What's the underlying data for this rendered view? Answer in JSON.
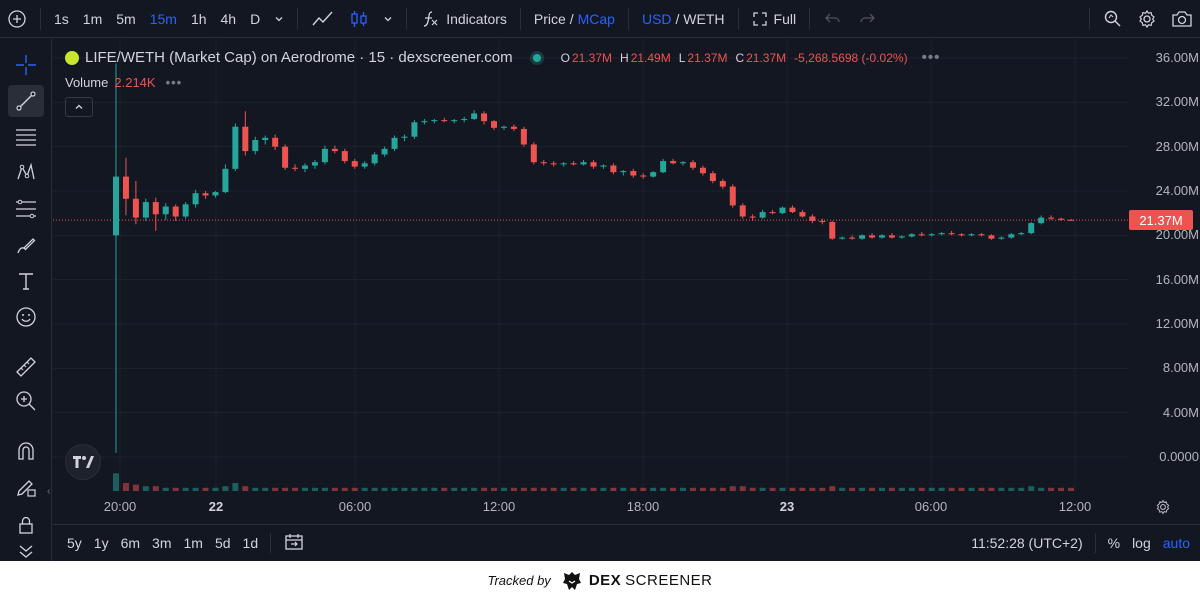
{
  "toolbar": {
    "intervals": [
      "1s",
      "1m",
      "5m",
      "15m",
      "1h",
      "4h",
      "D"
    ],
    "active_interval": "15m",
    "indicators_label": "Indicators",
    "price_label": "Price /",
    "mcap_label": "MCap",
    "usd_label": "USD",
    "weth_label": "/ WETH",
    "full_label": "Full"
  },
  "legend": {
    "title": "LIFE/WETH (Market Cap) on Aerodrome · 15 · dexscreener.com",
    "open_key": "O",
    "open": "21.37M",
    "high_key": "H",
    "high": "21.49M",
    "low_key": "L",
    "low": "21.37M",
    "close_key": "C",
    "close": "21.37M",
    "change": "-5,268.5698 (-0.02%)",
    "more": "•••",
    "volume_label": "Volume",
    "volume_value": "2.214K"
  },
  "price_axis": {
    "labels": [
      "36.00M",
      "32.00M",
      "28.00M",
      "24.00M",
      "20.00M",
      "16.00M",
      "12.00M",
      "8.00M",
      "4.00M",
      "0.0000"
    ],
    "last_price": "21.37M"
  },
  "time_axis": [
    {
      "label": "20:00",
      "bold": false
    },
    {
      "label": "22",
      "bold": true
    },
    {
      "label": "06:00",
      "bold": false
    },
    {
      "label": "12:00",
      "bold": false
    },
    {
      "label": "18:00",
      "bold": false
    },
    {
      "label": "23",
      "bold": true
    },
    {
      "label": "06:00",
      "bold": false
    },
    {
      "label": "12:00",
      "bold": false
    }
  ],
  "bottombar": {
    "ranges": [
      "5y",
      "1y",
      "6m",
      "3m",
      "1m",
      "5d",
      "1d"
    ],
    "clock": "11:52:28 (UTC+2)",
    "percent": "%",
    "log": "log",
    "auto": "auto"
  },
  "footer": {
    "tracked_by": "Tracked by",
    "brand_a": "DEX",
    "brand_b": "SCREENER"
  },
  "colors": {
    "up": "#26a69a",
    "down": "#ef5350",
    "accent": "#2962ff",
    "background": "#131722",
    "grid": "#1e222d"
  },
  "chart_data": {
    "type": "candlestick",
    "unit": "USD market cap (M)",
    "ylim": [
      -2,
      38
    ],
    "candles": [
      [
        20.0,
        35.5,
        0.4,
        25.3
      ],
      [
        25.3,
        27.0,
        21.8,
        23.3
      ],
      [
        23.3,
        24.9,
        21.0,
        21.6
      ],
      [
        21.6,
        23.3,
        21.3,
        23.0
      ],
      [
        23.0,
        23.4,
        20.4,
        21.9
      ],
      [
        21.9,
        22.9,
        21.4,
        22.6
      ],
      [
        22.6,
        22.8,
        21.3,
        21.7
      ],
      [
        21.7,
        23.0,
        21.5,
        22.8
      ],
      [
        22.8,
        24.1,
        22.5,
        23.8
      ],
      [
        23.8,
        24.0,
        23.3,
        23.6
      ],
      [
        23.6,
        24.0,
        23.4,
        23.9
      ],
      [
        23.9,
        26.4,
        23.8,
        26.0
      ],
      [
        26.0,
        30.1,
        25.8,
        29.8
      ],
      [
        29.8,
        31.2,
        27.2,
        27.6
      ],
      [
        27.6,
        28.9,
        27.3,
        28.6
      ],
      [
        28.6,
        29.0,
        28.2,
        28.8
      ],
      [
        28.8,
        29.1,
        27.7,
        28.0
      ],
      [
        28.0,
        28.2,
        25.9,
        26.1
      ],
      [
        26.1,
        26.4,
        25.8,
        26.0
      ],
      [
        26.0,
        26.5,
        25.7,
        26.3
      ],
      [
        26.3,
        26.8,
        26.0,
        26.6
      ],
      [
        26.6,
        28.1,
        26.4,
        27.8
      ],
      [
        27.8,
        28.1,
        27.4,
        27.6
      ],
      [
        27.6,
        27.8,
        26.5,
        26.7
      ],
      [
        26.7,
        26.9,
        26.0,
        26.2
      ],
      [
        26.2,
        26.7,
        26.0,
        26.5
      ],
      [
        26.5,
        27.5,
        26.3,
        27.3
      ],
      [
        27.3,
        28.0,
        27.1,
        27.8
      ],
      [
        27.8,
        29.0,
        27.6,
        28.8
      ],
      [
        28.8,
        29.1,
        28.5,
        28.9
      ],
      [
        28.9,
        30.4,
        28.7,
        30.2
      ],
      [
        30.2,
        30.5,
        30.0,
        30.3
      ],
      [
        30.3,
        30.5,
        30.1,
        30.4
      ],
      [
        30.4,
        30.6,
        30.2,
        30.3
      ],
      [
        30.3,
        30.5,
        30.1,
        30.4
      ],
      [
        30.4,
        30.7,
        30.2,
        30.5
      ],
      [
        30.5,
        31.3,
        30.4,
        31.0
      ],
      [
        31.0,
        31.2,
        30.0,
        30.3
      ],
      [
        30.3,
        30.4,
        29.5,
        29.7
      ],
      [
        29.7,
        29.9,
        29.5,
        29.8
      ],
      [
        29.8,
        30.0,
        29.4,
        29.6
      ],
      [
        29.6,
        29.8,
        28.0,
        28.2
      ],
      [
        28.2,
        28.4,
        26.4,
        26.6
      ],
      [
        26.6,
        26.8,
        26.3,
        26.5
      ],
      [
        26.5,
        26.7,
        26.2,
        26.4
      ],
      [
        26.4,
        26.6,
        26.2,
        26.5
      ],
      [
        26.5,
        26.7,
        26.3,
        26.4
      ],
      [
        26.4,
        26.8,
        26.3,
        26.6
      ],
      [
        26.6,
        26.8,
        26.0,
        26.2
      ],
      [
        26.2,
        26.4,
        26.0,
        26.3
      ],
      [
        26.3,
        26.5,
        25.5,
        25.7
      ],
      [
        25.7,
        25.9,
        25.4,
        25.8
      ],
      [
        25.8,
        26.0,
        25.2,
        25.4
      ],
      [
        25.4,
        25.6,
        25.1,
        25.3
      ],
      [
        25.3,
        25.8,
        25.2,
        25.7
      ],
      [
        25.7,
        26.9,
        25.6,
        26.7
      ],
      [
        26.7,
        26.9,
        26.4,
        26.5
      ],
      [
        26.5,
        26.7,
        26.3,
        26.6
      ],
      [
        26.6,
        26.8,
        25.9,
        26.1
      ],
      [
        26.1,
        26.3,
        25.4,
        25.6
      ],
      [
        25.6,
        25.8,
        24.7,
        24.9
      ],
      [
        24.9,
        25.1,
        24.2,
        24.4
      ],
      [
        24.4,
        24.6,
        22.5,
        22.7
      ],
      [
        22.7,
        22.9,
        21.5,
        21.7
      ],
      [
        21.7,
        21.9,
        21.3,
        21.6
      ],
      [
        21.6,
        22.3,
        21.5,
        22.1
      ],
      [
        22.1,
        22.3,
        21.9,
        22.0
      ],
      [
        22.0,
        22.6,
        21.9,
        22.5
      ],
      [
        22.5,
        22.7,
        22.0,
        22.1
      ],
      [
        22.1,
        22.3,
        21.6,
        21.7
      ],
      [
        21.7,
        21.9,
        21.1,
        21.3
      ],
      [
        21.3,
        21.5,
        21.0,
        21.2
      ],
      [
        21.2,
        21.3,
        19.6,
        19.7
      ],
      [
        19.7,
        19.9,
        19.6,
        19.8
      ],
      [
        19.8,
        20.0,
        19.6,
        19.7
      ],
      [
        19.7,
        20.1,
        19.6,
        20.0
      ],
      [
        20.0,
        20.2,
        19.7,
        19.8
      ],
      [
        19.8,
        20.1,
        19.7,
        20.0
      ],
      [
        20.0,
        20.2,
        19.7,
        19.8
      ],
      [
        19.8,
        20.0,
        19.7,
        19.9
      ],
      [
        19.9,
        20.2,
        19.8,
        20.1
      ],
      [
        20.1,
        20.3,
        19.9,
        20.0
      ],
      [
        20.0,
        20.2,
        19.9,
        20.1
      ],
      [
        20.1,
        20.3,
        20.0,
        20.2
      ],
      [
        20.2,
        20.4,
        20.0,
        20.1
      ],
      [
        20.1,
        20.2,
        19.9,
        20.0
      ],
      [
        20.0,
        20.2,
        19.9,
        20.1
      ],
      [
        20.1,
        20.2,
        19.9,
        20.0
      ],
      [
        20.0,
        20.1,
        19.6,
        19.7
      ],
      [
        19.7,
        19.9,
        19.6,
        19.8
      ],
      [
        19.8,
        20.2,
        19.7,
        20.1
      ],
      [
        20.1,
        20.3,
        20.0,
        20.2
      ],
      [
        20.2,
        21.2,
        20.1,
        21.1
      ],
      [
        21.1,
        21.8,
        21.0,
        21.6
      ],
      [
        21.6,
        21.8,
        21.4,
        21.5
      ],
      [
        21.5,
        21.6,
        21.3,
        21.4
      ],
      [
        21.4,
        21.49,
        21.37,
        21.37
      ]
    ],
    "volume": [
      1.1,
      0.5,
      0.4,
      0.3,
      0.3,
      0.2,
      0.2,
      0.2,
      0.2,
      0.2,
      0.2,
      0.3,
      0.5,
      0.3,
      0.2,
      0.2,
      0.2,
      0.2,
      0.2,
      0.2,
      0.2,
      0.2,
      0.2,
      0.2,
      0.2,
      0.2,
      0.2,
      0.2,
      0.2,
      0.2,
      0.2,
      0.2,
      0.2,
      0.2,
      0.2,
      0.2,
      0.2,
      0.2,
      0.2,
      0.2,
      0.2,
      0.2,
      0.2,
      0.2,
      0.2,
      0.2,
      0.2,
      0.2,
      0.2,
      0.2,
      0.2,
      0.2,
      0.2,
      0.2,
      0.2,
      0.2,
      0.2,
      0.2,
      0.2,
      0.2,
      0.2,
      0.2,
      0.3,
      0.3,
      0.2,
      0.2,
      0.2,
      0.2,
      0.2,
      0.2,
      0.2,
      0.2,
      0.3,
      0.2,
      0.2,
      0.2,
      0.2,
      0.2,
      0.2,
      0.2,
      0.2,
      0.2,
      0.2,
      0.2,
      0.2,
      0.2,
      0.2,
      0.2,
      0.2,
      0.2,
      0.2,
      0.2,
      0.3,
      0.2,
      0.2,
      0.2,
      0.2
    ]
  }
}
